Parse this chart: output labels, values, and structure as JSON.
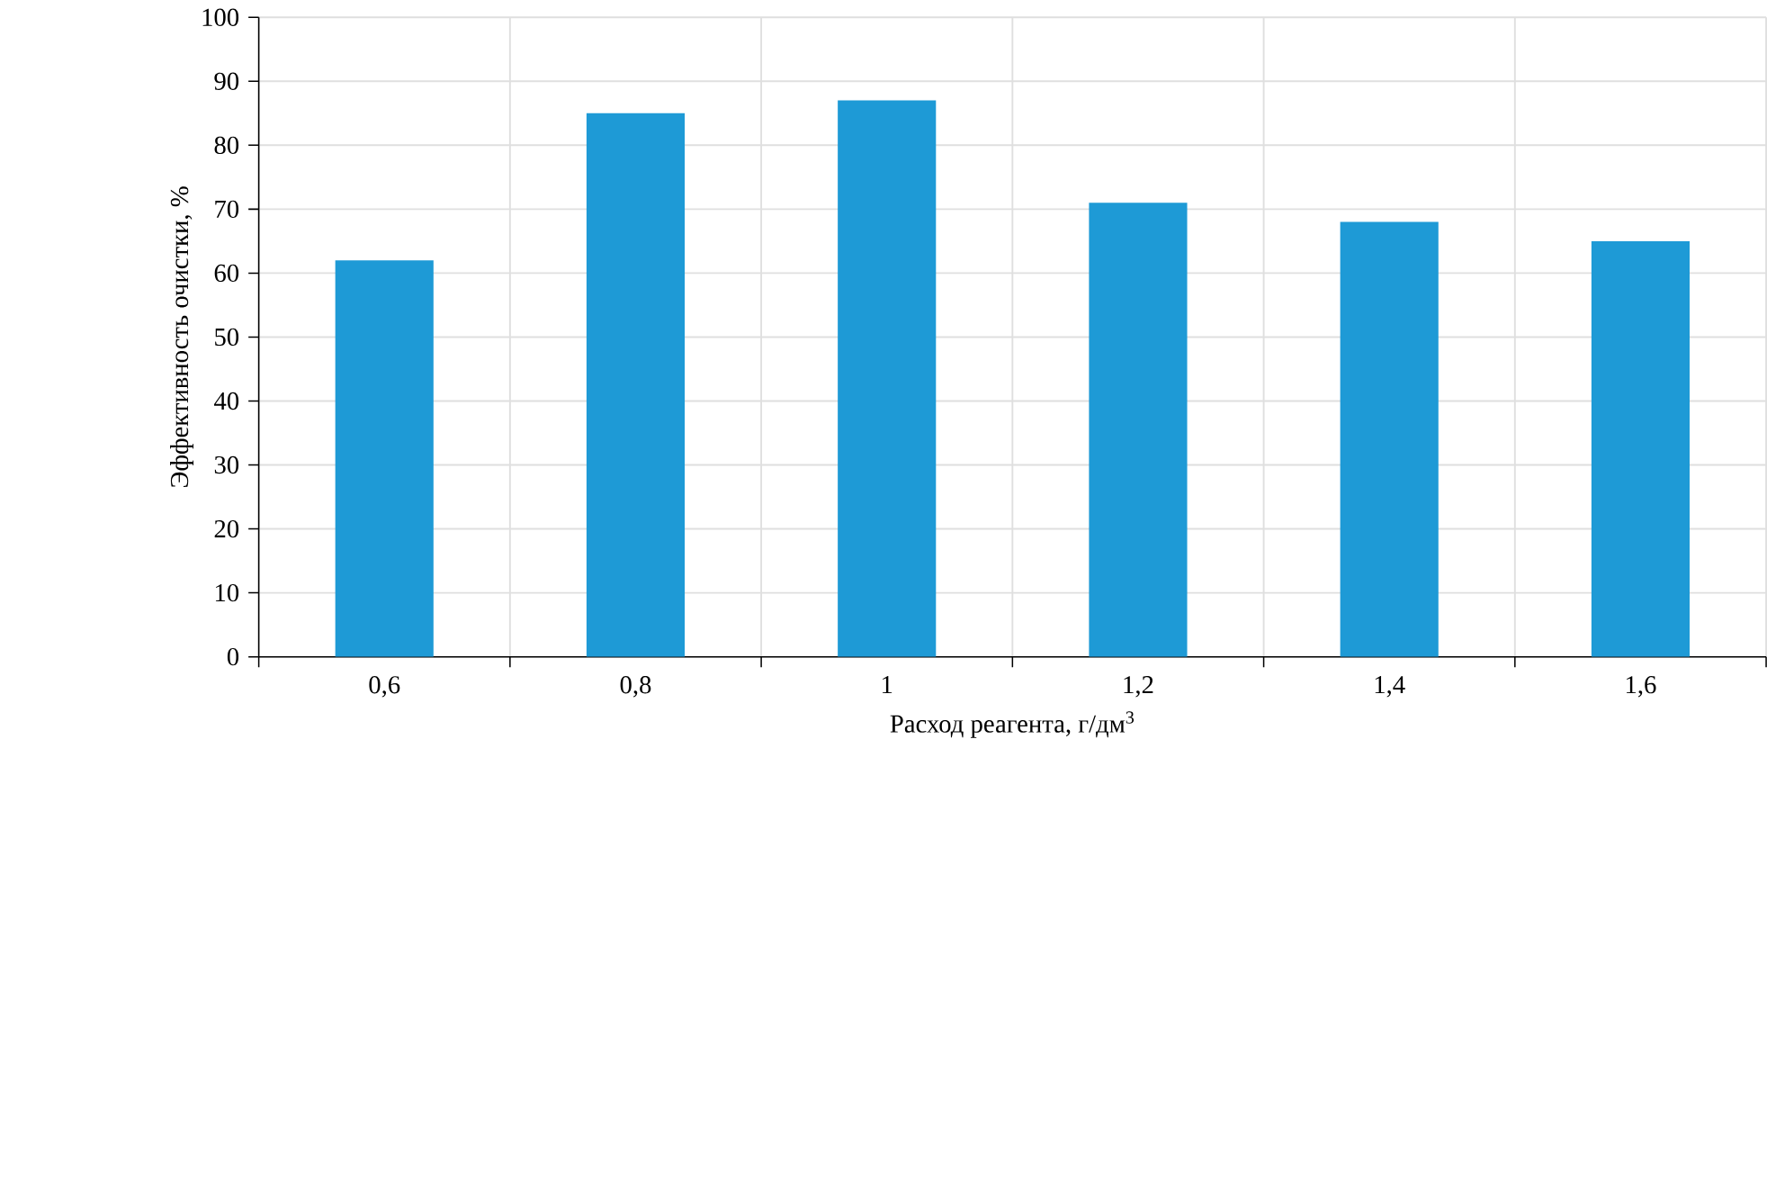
{
  "chart_data": {
    "type": "bar",
    "xlabel": "Расход реагента, г/дм$^{3}$",
    "ylabel": "Эффективность очистки, %",
    "categories": [
      "0,6",
      "0,8",
      "1",
      "1,2",
      "1,4",
      "1,6"
    ],
    "values": [
      62,
      85,
      87,
      71,
      68,
      65
    ],
    "color": "#1e9ad6",
    "ylim": [
      0,
      100
    ],
    "yticks": [
      0,
      10,
      20,
      30,
      40,
      50,
      60,
      70,
      80,
      90,
      100
    ],
    "grid": true
  }
}
